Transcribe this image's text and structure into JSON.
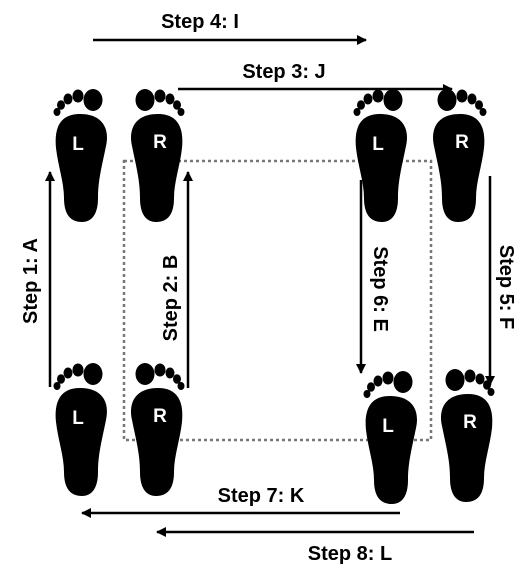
{
  "steps": {
    "step1": "Step 1: A",
    "step2": "Step 2: B",
    "step3": "Step 3: J",
    "step4": "Step 4: I",
    "step5": "Step 5: F",
    "step6": "Step 6: E",
    "step7": "Step 7: K",
    "step8": "Step 8: L"
  },
  "feet": {
    "left_letter": "L",
    "right_letter": "R"
  },
  "colors": {
    "ink": "#000000",
    "foot": "#000000",
    "foot_text": "#ffffff",
    "dotted_box": "#777777"
  }
}
